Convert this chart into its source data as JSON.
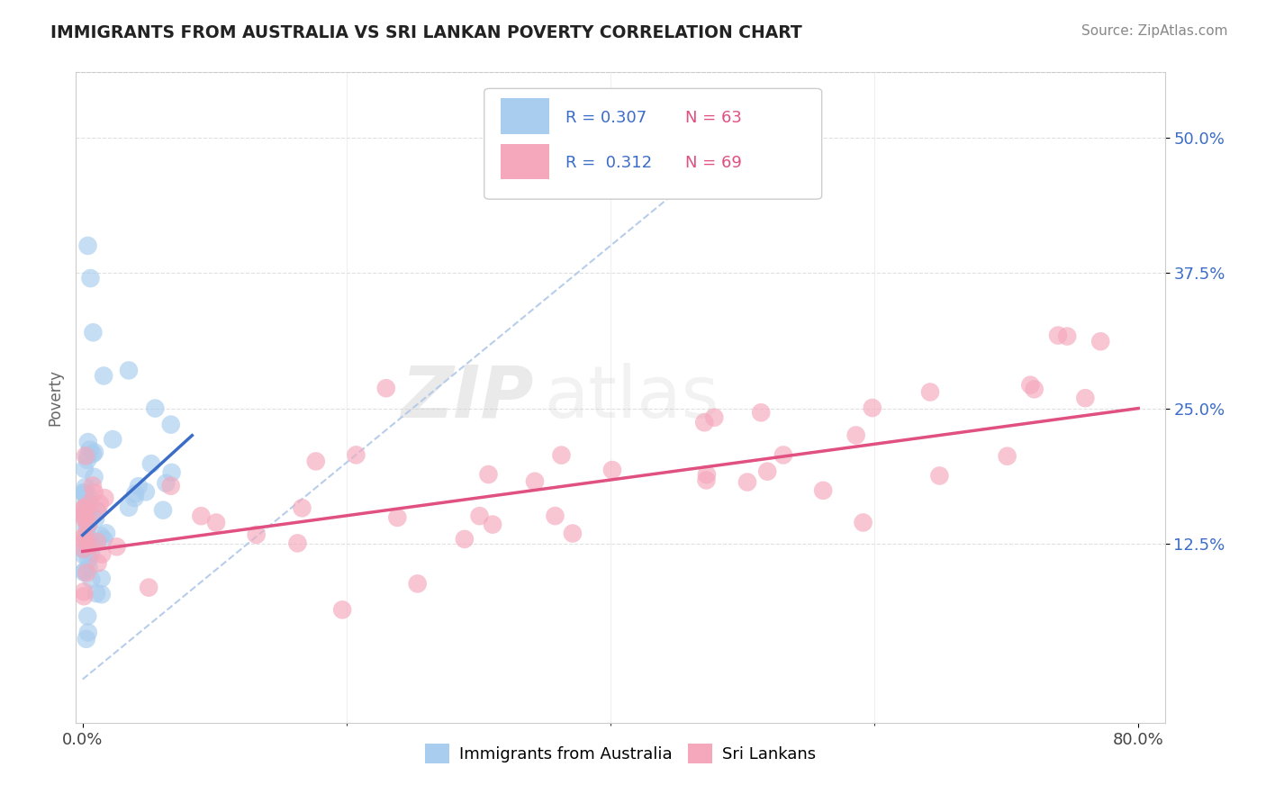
{
  "title": "IMMIGRANTS FROM AUSTRALIA VS SRI LANKAN POVERTY CORRELATION CHART",
  "source": "Source: ZipAtlas.com",
  "ylabel_label": "Poverty",
  "ylabel_ticks": [
    "12.5%",
    "25.0%",
    "37.5%",
    "50.0%"
  ],
  "xlim": [
    -0.005,
    0.82
  ],
  "ylim": [
    -0.04,
    0.56
  ],
  "ytick_positions": [
    0.125,
    0.25,
    0.375,
    0.5
  ],
  "xtick_positions": [
    0.0,
    0.8
  ],
  "xtick_labels": [
    "0.0%",
    "80.0%"
  ],
  "series1_name": "Immigrants from Australia",
  "series1_R": 0.307,
  "series1_N": 63,
  "series1_color": "#A8CDEF",
  "series1_line_color": "#3B6CC7",
  "series2_name": "Sri Lankans",
  "series2_R": 0.312,
  "series2_N": 69,
  "series2_color": "#F5A8BC",
  "series2_line_color": "#E05080",
  "diag_color": "#B0C8E8",
  "legend_R_color": "#3B6CC7",
  "legend_N_color": "#E05080",
  "watermark_zip": "ZIP",
  "watermark_atlas": "atlas",
  "background_color": "#FFFFFF",
  "grid_color": "#E0E0E0",
  "grid_style": "--"
}
